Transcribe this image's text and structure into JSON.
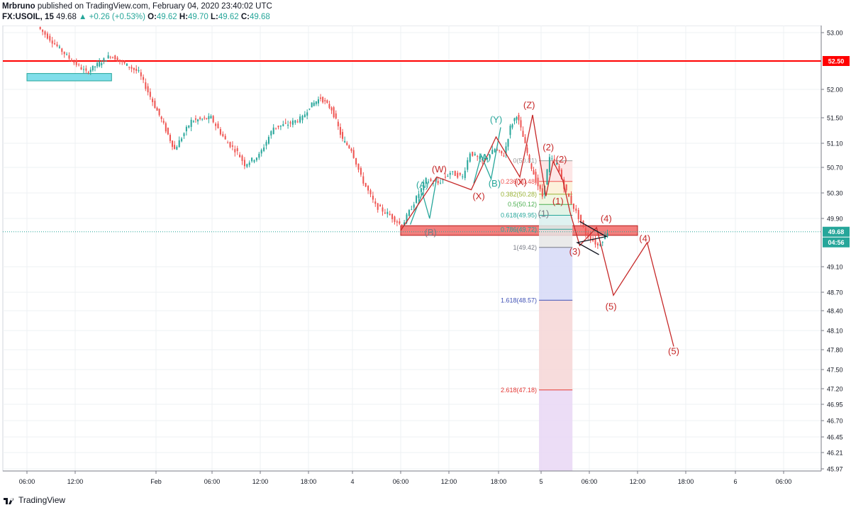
{
  "header": {
    "author": "Mrbruno",
    "published": " published on TradingView.com, February 04, 2020 23:40:02 UTC",
    "symbol": "FX:USOIL, 15",
    "last": "49.68",
    "change_arrow": "▲",
    "change": "+0.26 (+0.53%)",
    "o_label": "O:",
    "o": "49.62",
    "h_label": "H:",
    "h": "49.70",
    "l_label": "L:",
    "l": "49.62",
    "c_label": "C:",
    "c": "49.68"
  },
  "footer": {
    "brand": "TradingView",
    "logo_icon": "tradingview-logo-icon"
  },
  "colors": {
    "up": "#26a69a",
    "down": "#ef5350",
    "resistance": "#ff0000",
    "wave_red": "#c62828",
    "wave_teal": "#26a69a"
  },
  "chart_data": {
    "type": "candlestick",
    "symbol": "FX:USOIL",
    "interval": "15",
    "price_axis": {
      "ticks": [
        "53.00",
        "52.50",
        "52.00",
        "51.50",
        "51.10",
        "50.70",
        "50.30",
        "49.90",
        "49.68",
        "49.10",
        "48.70",
        "48.40",
        "48.10",
        "47.80",
        "47.50",
        "47.20",
        "46.95",
        "46.70",
        "46.45",
        "46.21",
        "45.97"
      ],
      "range": [
        45.85,
        53.2
      ]
    },
    "time_axis": {
      "ticks": [
        "06:00",
        "12:00",
        "Feb",
        "06:00",
        "12:00",
        "18:00",
        "4",
        "06:00",
        "12:00",
        "18:00",
        "5",
        "06:00",
        "12:00",
        "18:00",
        "6",
        "06:00"
      ],
      "range": [
        0,
        16
      ]
    },
    "price_path": [
      [
        0.25,
        53.1
      ],
      [
        0.6,
        52.8
      ],
      [
        0.9,
        52.55
      ],
      [
        1.15,
        52.3
      ],
      [
        1.45,
        52.6
      ],
      [
        1.8,
        52.3
      ],
      [
        2.0,
        51.7
      ],
      [
        2.35,
        51.0
      ],
      [
        2.65,
        51.45
      ],
      [
        3.0,
        51.5
      ],
      [
        3.3,
        51.15
      ],
      [
        3.55,
        50.95
      ],
      [
        3.7,
        50.75
      ],
      [
        4.0,
        50.9
      ],
      [
        4.3,
        51.35
      ],
      [
        4.6,
        51.4
      ],
      [
        4.9,
        51.5
      ],
      [
        5.05,
        51.7
      ],
      [
        5.3,
        51.85
      ],
      [
        5.55,
        51.65
      ],
      [
        5.8,
        51.15
      ],
      [
        6.0,
        51.0
      ],
      [
        6.2,
        50.55
      ],
      [
        6.5,
        50.1
      ],
      [
        6.8,
        49.95
      ],
      [
        7.05,
        49.78
      ],
      [
        7.3,
        50.15
      ],
      [
        7.55,
        50.5
      ],
      [
        7.8,
        50.45
      ],
      [
        8.05,
        50.62
      ],
      [
        8.3,
        50.55
      ],
      [
        8.45,
        50.95
      ],
      [
        8.7,
        50.8
      ],
      [
        8.95,
        51.0
      ],
      [
        9.15,
        50.9
      ],
      [
        9.3,
        51.35
      ],
      [
        9.45,
        51.55
      ],
      [
        9.6,
        51.2
      ],
      [
        9.75,
        50.8
      ],
      [
        9.9,
        50.5
      ],
      [
        10.05,
        50.25
      ],
      [
        10.2,
        50.85
      ],
      [
        10.35,
        50.75
      ],
      [
        10.5,
        50.4
      ],
      [
        10.65,
        50.15
      ],
      [
        10.8,
        49.92
      ],
      [
        10.95,
        49.65
      ],
      [
        11.05,
        49.58
      ],
      [
        11.2,
        49.45
      ],
      [
        11.3,
        49.55
      ],
      [
        11.4,
        49.68
      ]
    ],
    "current_price": "49.68",
    "countdown": "04:56",
    "resistance": {
      "price": "52.50"
    },
    "zones": [
      {
        "name": "supply-demand-zone",
        "x_start": 7.0,
        "x_end": 12.0,
        "price_top": 49.78,
        "price_bottom": 49.62
      },
      {
        "name": "support-box",
        "x_start": 0,
        "x_end": 1.45,
        "price_top": 52.28,
        "price_bottom": 52.15
      }
    ],
    "fibonacci": {
      "x_start": 9.95,
      "x_end": 10.65,
      "levels": [
        {
          "ratio": "0(50.81)",
          "price": 50.81,
          "color": "#9e9e9e"
        },
        {
          "ratio": "0.236(50.48)",
          "price": 50.48,
          "color": "#ef5350"
        },
        {
          "ratio": "0.382(50.28)",
          "price": 50.28,
          "color": "#9bb436"
        },
        {
          "ratio": "0.5(50.12)",
          "price": 50.12,
          "color": "#4caf50"
        },
        {
          "ratio": "0.618(49.95)",
          "price": 49.95,
          "color": "#26a69a"
        },
        {
          "ratio": "0.786(49.72)",
          "price": 49.72,
          "color": "#26a69a"
        },
        {
          "ratio": "1(49.42)",
          "price": 49.42,
          "color": "#787b86"
        },
        {
          "ratio": "1.618(48.57)",
          "price": 48.57,
          "color": "#3f51b5"
        },
        {
          "ratio": "2.618(47.18)",
          "price": 47.18,
          "color": "#e53935"
        }
      ]
    },
    "wave_lines": [
      {
        "name": "teal-abc",
        "color": "#26a69a",
        "points": [
          [
            7.2,
            49.8
          ],
          [
            7.45,
            50.3
          ],
          [
            7.6,
            49.9
          ],
          [
            7.75,
            50.55
          ]
        ]
      },
      {
        "name": "teal-abc-2",
        "color": "#26a69a",
        "points": [
          [
            8.5,
            50.45
          ],
          [
            8.65,
            50.9
          ],
          [
            8.85,
            50.52
          ],
          [
            9.05,
            51.35
          ]
        ]
      },
      {
        "name": "red-wxyxz",
        "color": "#c62828",
        "points": [
          [
            7.0,
            49.7
          ],
          [
            7.75,
            50.55
          ],
          [
            8.45,
            50.35
          ],
          [
            8.95,
            51.2
          ],
          [
            9.5,
            50.55
          ],
          [
            9.8,
            51.55
          ],
          [
            10.1,
            50.25
          ],
          [
            10.25,
            50.8
          ],
          [
            10.45,
            50.5
          ],
          [
            10.6,
            50.0
          ],
          [
            10.8,
            49.45
          ],
          [
            11.15,
            49.75
          ],
          [
            11.5,
            48.65
          ],
          [
            12.2,
            49.5
          ],
          [
            12.75,
            47.85
          ]
        ]
      },
      {
        "name": "triangle",
        "color": "#131722",
        "points": [
          [
            10.8,
            49.85
          ],
          [
            11.35,
            49.6
          ],
          [
            10.75,
            49.5
          ],
          [
            11.2,
            49.3
          ]
        ]
      }
    ],
    "wave_labels": [
      {
        "text": "(A)",
        "x": 7.45,
        "p": 50.38,
        "color": "#26a69a"
      },
      {
        "text": "(W)",
        "x": 7.8,
        "p": 50.62,
        "color": "#c62828"
      },
      {
        "text": "(B)",
        "x": 7.62,
        "p": 49.62,
        "color": "#787b86"
      },
      {
        "text": "(X)",
        "x": 8.6,
        "p": 50.2,
        "color": "#c62828"
      },
      {
        "text": "(A)",
        "x": 8.72,
        "p": 50.82,
        "color": "#26a69a"
      },
      {
        "text": "(B)",
        "x": 8.92,
        "p": 50.4,
        "color": "#26a69a"
      },
      {
        "text": "(Y)",
        "x": 8.95,
        "p": 51.42,
        "color": "#26a69a"
      },
      {
        "text": "(X)",
        "x": 9.52,
        "p": 50.42,
        "color": "#c62828"
      },
      {
        "text": "(Z)",
        "x": 9.72,
        "p": 51.67,
        "color": "#c62828"
      },
      {
        "text": "(2)",
        "x": 10.15,
        "p": 50.98,
        "color": "#c62828"
      },
      {
        "text": "(2)",
        "x": 10.42,
        "p": 50.78,
        "color": "#c62828"
      },
      {
        "text": "(1)",
        "x": 10.35,
        "p": 50.12,
        "color": "#c62828"
      },
      {
        "text": "(1)",
        "x": 10.05,
        "p": 49.93,
        "color": "#787b86"
      },
      {
        "text": "(3)",
        "x": 10.7,
        "p": 49.3,
        "color": "#c62828"
      },
      {
        "text": "(4)",
        "x": 11.35,
        "p": 49.85,
        "color": "#c62828"
      },
      {
        "text": "(4)",
        "x": 12.15,
        "p": 49.52,
        "color": "#c62828"
      },
      {
        "text": "(5)",
        "x": 11.45,
        "p": 48.42,
        "color": "#c62828"
      },
      {
        "text": "(5)",
        "x": 12.75,
        "p": 47.73,
        "color": "#c62828"
      }
    ]
  }
}
